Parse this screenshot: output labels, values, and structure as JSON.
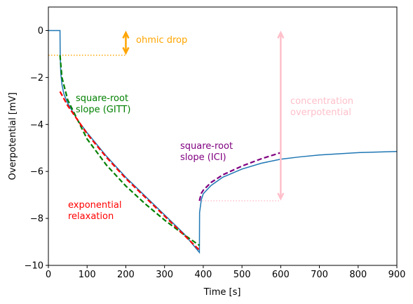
{
  "chart_data": {
    "type": "line",
    "x_label": "Time [s]",
    "y_label": "Overpotential [mV]",
    "xlim": [
      0,
      900
    ],
    "ylim": [
      -10,
      1
    ],
    "xticks": [
      0,
      100,
      200,
      300,
      400,
      500,
      600,
      700,
      800,
      900
    ],
    "yticks": [
      {
        "value": -10,
        "label": "−10"
      },
      {
        "value": -8,
        "label": "−8"
      },
      {
        "value": -6,
        "label": "−6"
      },
      {
        "value": -4,
        "label": "−4"
      },
      {
        "value": -2,
        "label": "−2"
      },
      0
    ],
    "series": [
      {
        "color": "#1f77b4",
        "dashed": false,
        "x": [
          0,
          30,
          30.5,
          32,
          35,
          40,
          50,
          75,
          100,
          150,
          200,
          250,
          300,
          350,
          390,
          390.5,
          395,
          400,
          420,
          450,
          500,
          550,
          600,
          650,
          700,
          800,
          900
        ],
        "values": [
          0,
          0,
          -1.05,
          -1.8,
          -2.3,
          -2.7,
          -3.1,
          -3.8,
          -4.35,
          -5.35,
          -6.25,
          -7.05,
          -7.85,
          -8.65,
          -9.45,
          -7.75,
          -7.2,
          -6.95,
          -6.6,
          -6.25,
          -5.9,
          -5.65,
          -5.48,
          -5.38,
          -5.3,
          -5.2,
          -5.15
        ]
      },
      {
        "color": "green",
        "dashed": true,
        "x": [
          30,
          35,
          50,
          100,
          150,
          200,
          250,
          300,
          350,
          390
        ],
        "values": [
          -1.05,
          -2.0,
          -2.96,
          -4.62,
          -5.73,
          -6.62,
          -7.38,
          -8.07,
          -8.69,
          -9.15
        ]
      },
      {
        "color": "red",
        "dashed": true,
        "x": [
          30,
          50,
          100,
          150,
          200,
          250,
          300,
          350,
          390
        ],
        "values": [
          -2.6,
          -3.2,
          -4.4,
          -5.4,
          -6.3,
          -7.1,
          -7.9,
          -8.7,
          -9.35
        ]
      },
      {
        "color": "purple",
        "dashed": true,
        "x": [
          390,
          395,
          400,
          420,
          450,
          500,
          550,
          600
        ],
        "values": [
          -7.25,
          -6.93,
          -6.8,
          -6.47,
          -6.15,
          -5.77,
          -5.46,
          -5.2
        ]
      }
    ],
    "reference_lines": [
      {
        "y": -1.05,
        "x1": 0,
        "x2": 200,
        "color": "orange"
      },
      {
        "y": -7.25,
        "x1": 390,
        "x2": 600,
        "color": "pink"
      }
    ],
    "arrows": [
      {
        "x": 200,
        "y1": 0,
        "y2": -1.05,
        "color": "orange"
      },
      {
        "x": 600,
        "y1": 0,
        "y2": -7.25,
        "color": "pink"
      }
    ],
    "annotations": [
      {
        "text": [
          "ohmic drop"
        ],
        "color": "orange"
      },
      {
        "text": [
          "square-root",
          "slope (GITT)"
        ],
        "color": "green"
      },
      {
        "text": [
          "exponential",
          "relaxation"
        ],
        "color": "red"
      },
      {
        "text": [
          "square-root",
          "slope (ICI)"
        ],
        "color": "purple"
      },
      {
        "text": [
          "concentration",
          "overpotential"
        ],
        "color": "pink"
      }
    ]
  }
}
